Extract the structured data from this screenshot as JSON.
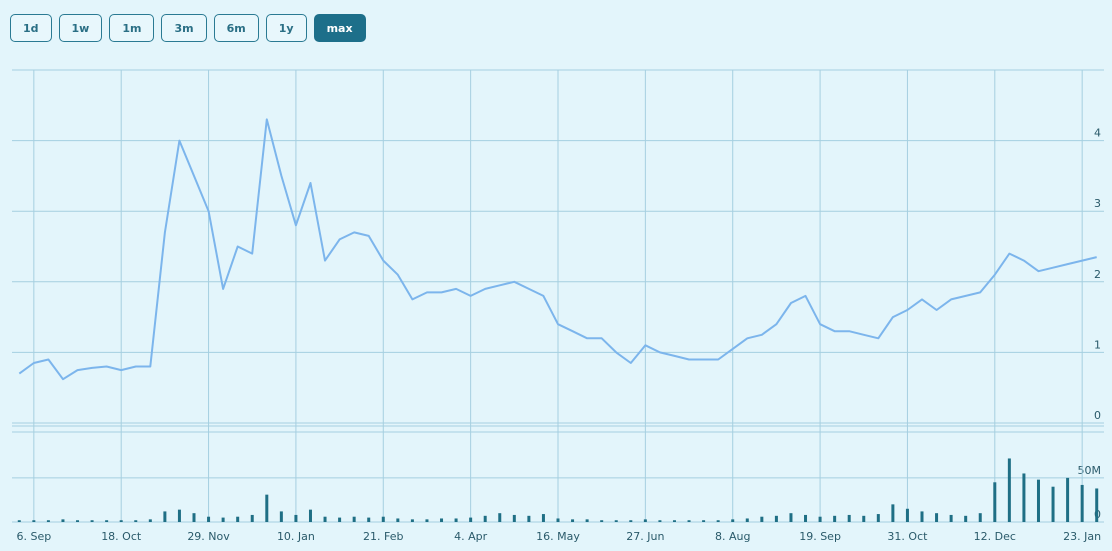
{
  "buttons": [
    "1d",
    "1w",
    "1m",
    "3m",
    "6m",
    "1y",
    "max"
  ],
  "selected_button": 6,
  "chart_data": {
    "type": "line",
    "color": "#7cb5ec",
    "categories": [
      null,
      "6. Sep",
      null,
      null,
      null,
      null,
      null,
      "18. Oct",
      null,
      null,
      null,
      null,
      null,
      "29. Nov",
      null,
      null,
      null,
      null,
      null,
      "10. Jan",
      null,
      null,
      null,
      null,
      null,
      "21. Feb",
      null,
      null,
      null,
      null,
      null,
      "4. Apr",
      null,
      null,
      null,
      null,
      null,
      "16. May",
      null,
      null,
      null,
      null,
      null,
      "27. Jun",
      null,
      null,
      null,
      null,
      null,
      "8. Aug",
      null,
      null,
      null,
      null,
      null,
      "19. Sep",
      null,
      null,
      null,
      null,
      null,
      "31. Oct",
      null,
      null,
      null,
      null,
      null,
      "12. Dec",
      null,
      null,
      null,
      null,
      null,
      "23. Jan",
      null
    ],
    "values": [
      0.7,
      0.85,
      0.9,
      0.62,
      0.75,
      0.78,
      0.8,
      0.75,
      0.8,
      0.8,
      2.7,
      4.0,
      3.5,
      3.0,
      1.9,
      2.5,
      2.4,
      4.3,
      3.5,
      2.8,
      3.4,
      2.3,
      2.6,
      2.7,
      2.65,
      2.3,
      2.1,
      1.75,
      1.85,
      1.85,
      1.9,
      1.8,
      1.9,
      1.95,
      2.0,
      1.9,
      1.8,
      1.4,
      1.3,
      1.2,
      1.2,
      1.0,
      0.85,
      1.1,
      1.0,
      0.95,
      0.9,
      0.9,
      0.9,
      1.05,
      1.2,
      1.25,
      1.4,
      1.7,
      1.8,
      1.4,
      1.3,
      1.3,
      1.25,
      1.2,
      1.5,
      1.6,
      1.75,
      1.6,
      1.75,
      1.8,
      1.85,
      2.1,
      2.4,
      2.3,
      2.15,
      2.2,
      2.25,
      2.3,
      2.35
    ],
    "ylim": [
      0,
      5
    ],
    "yticks": [
      0,
      1,
      2,
      3,
      4
    ],
    "grid": true,
    "volume": {
      "color": "#1f6f85",
      "values": [
        2000000,
        2000000,
        2000000,
        3000000,
        2000000,
        2000000,
        2000000,
        2000000,
        2000000,
        3000000,
        12000000,
        14000000,
        10000000,
        6000000,
        5000000,
        6000000,
        8000000,
        31000000,
        12000000,
        8000000,
        14000000,
        6000000,
        5000000,
        6000000,
        5000000,
        6000000,
        4000000,
        3000000,
        3000000,
        4000000,
        4000000,
        5000000,
        7000000,
        10000000,
        8000000,
        7000000,
        9000000,
        4000000,
        3000000,
        3000000,
        2000000,
        2000000,
        2000000,
        3000000,
        2000000,
        2000000,
        2000000,
        2000000,
        2000000,
        3000000,
        4000000,
        6000000,
        7000000,
        10000000,
        8000000,
        6000000,
        7000000,
        8000000,
        7000000,
        9000000,
        20000000,
        15000000,
        12000000,
        10000000,
        8000000,
        7000000,
        10000000,
        45000000,
        72000000,
        55000000,
        48000000,
        40000000,
        50000000,
        42000000,
        38000000
      ],
      "ylim": [
        0,
        102000000
      ],
      "yticks": [
        0,
        {
          "value": 50000000,
          "label": "50M"
        }
      ]
    }
  }
}
